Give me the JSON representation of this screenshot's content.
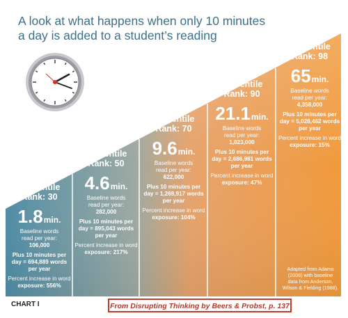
{
  "title_line1": "A look at what happens when only 10 minutes",
  "title_line2": "a day is added to a student’s reading",
  "colors": {
    "title": "#3d6f8a",
    "gradient_left": "#4f8da6",
    "gradient_mid": "#e8a46a",
    "gradient_right": "#f19a3c",
    "source_border": "#c0392b",
    "source_text": "#b23a2c"
  },
  "columns": [
    {
      "pr1": "Percentile",
      "pr2": "Rank: 30",
      "minutes": "1.8",
      "unit": "min.",
      "baseline1": "Baseline words",
      "baseline2": "read per year:",
      "baseline_value": "106,000",
      "plus1": "Plus 10 minutes per",
      "plus2": "day = 694,889 words",
      "plus3": "per year",
      "pct1": "Percent increase in word",
      "pct2": "exposure: 556%"
    },
    {
      "pr1": "Percentile",
      "pr2": "Rank: 50",
      "minutes": "4.6",
      "unit": "min.",
      "baseline1": "Baseline words",
      "baseline2": "read per year:",
      "baseline_value": "282,000",
      "plus1": "Plus 10 minutes per",
      "plus2": "day = 895,043 words",
      "plus3": "per year",
      "pct1": "Percent increase in word",
      "pct2": "exposure: 217%"
    },
    {
      "pr1": "Percentile",
      "pr2": "Rank: 70",
      "minutes": "9.6",
      "unit": "min.",
      "baseline1": "Baseline words",
      "baseline2": "read per year:",
      "baseline_value": "622,000",
      "plus1": "Plus 10 minutes per",
      "plus2": "day = 1,269,917 words",
      "plus3": "per year",
      "pct1": "Percent increase in word",
      "pct2": "exposure: 104%"
    },
    {
      "pr1": "Percentile",
      "pr2": "Rank: 90",
      "minutes": "21.1",
      "unit": "min.",
      "baseline1": "Baseline words",
      "baseline2": "read per year:",
      "baseline_value": "1,823,000",
      "plus1": "Plus 10 minutes per",
      "plus2": "day = 2,686,981 words",
      "plus3": "per year",
      "pct1": "Percent increase in word",
      "pct2": "exposure: 47%"
    },
    {
      "pr1": "Percentile",
      "pr2": "Rank: 98",
      "minutes": "65",
      "unit": "min.",
      "baseline1": "Baseline words",
      "baseline2": "read per year:",
      "baseline_value": "4,358,000",
      "plus1": "Plus 10 minutes per",
      "plus2": "day = 5,028,462 words",
      "plus3": "per year",
      "pct1": "Percent increase in word",
      "pct2": "exposure: 15%"
    }
  ],
  "credit": {
    "line1": "Adapted from Adams",
    "line2": "(2006) with baseline",
    "line3": "data from Anderson,",
    "line4": "Wilson & Fielding (1988)."
  },
  "chart_label": "CHART I",
  "source": "From Disrupting Thinking by Beers & Probst, p. 137"
}
